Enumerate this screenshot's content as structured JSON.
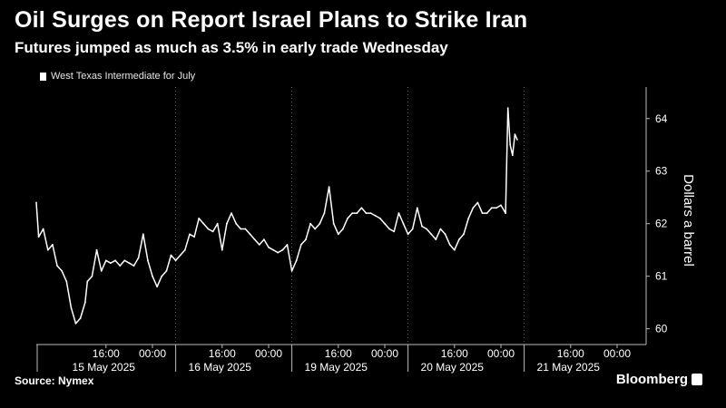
{
  "title": "Oil Surges on Report Israel Plans to Strike Iran",
  "subtitle": "Futures jumped as much as 3.5% in early trade Wednesday",
  "source": "Source: Nymex",
  "brand": "Bloomberg",
  "colors": {
    "background": "#000000",
    "line": "#ffffff",
    "grid": "#5a5a5a"
  },
  "chart_data": {
    "type": "line",
    "title": "Oil Surges on Report Israel Plans to Strike Iran",
    "subtitle": "Futures jumped as much as 3.5% in early trade Wednesday",
    "ylabel": "Dollars a barrel",
    "ylim": [
      59.7,
      64.6
    ],
    "yticks": [
      60,
      61,
      62,
      63,
      64
    ],
    "xlim": [
      -0.5,
      12
    ],
    "legend": {
      "placement": "top-left",
      "entries": [
        "West Texas Intermediate for July"
      ]
    },
    "grid": {
      "y": false,
      "x": true,
      "style": "dotted vertical lines at day boundaries"
    },
    "x_time_labels": [
      {
        "x": 1.0,
        "label": "16:00"
      },
      {
        "x": 2.0,
        "label": "00:00"
      },
      {
        "x": 3.5,
        "label": "16:00"
      },
      {
        "x": 4.5,
        "label": "00:00"
      },
      {
        "x": 6.0,
        "label": "16:00"
      },
      {
        "x": 7.0,
        "label": "00:00"
      },
      {
        "x": 8.5,
        "label": "16:00"
      },
      {
        "x": 9.5,
        "label": "00:00"
      },
      {
        "x": 11.0,
        "label": "16:00"
      },
      {
        "x": 12.0,
        "label": "00:00"
      }
    ],
    "x_date_labels": [
      {
        "x": 0.95,
        "label": "15 May 2025"
      },
      {
        "x": 3.45,
        "label": "16 May 2025"
      },
      {
        "x": 5.95,
        "label": "19 May 2025"
      },
      {
        "x": 8.45,
        "label": "20 May 2025"
      },
      {
        "x": 10.95,
        "label": "21 May 2025"
      }
    ],
    "x_day_boundaries": [
      2.5,
      5.0,
      7.5,
      10.0
    ],
    "series": [
      {
        "name": "West Texas Intermediate for July",
        "x": [
          -0.5,
          -0.45,
          -0.35,
          -0.25,
          -0.15,
          -0.05,
          0.05,
          0.15,
          0.25,
          0.35,
          0.45,
          0.55,
          0.6,
          0.7,
          0.8,
          0.9,
          1.0,
          1.1,
          1.2,
          1.3,
          1.4,
          1.5,
          1.6,
          1.7,
          1.8,
          1.9,
          2.0,
          2.1,
          2.2,
          2.3,
          2.4,
          2.5,
          2.6,
          2.7,
          2.8,
          2.9,
          3.0,
          3.1,
          3.2,
          3.3,
          3.4,
          3.5,
          3.6,
          3.7,
          3.8,
          3.9,
          4.0,
          4.1,
          4.2,
          4.3,
          4.4,
          4.5,
          4.6,
          4.7,
          4.8,
          4.9,
          5.0,
          5.1,
          5.2,
          5.3,
          5.4,
          5.5,
          5.6,
          5.7,
          5.8,
          5.9,
          6.0,
          6.1,
          6.2,
          6.3,
          6.4,
          6.5,
          6.6,
          6.7,
          6.8,
          6.9,
          7.0,
          7.1,
          7.2,
          7.3,
          7.4,
          7.5,
          7.6,
          7.7,
          7.8,
          7.9,
          8.0,
          8.1,
          8.2,
          8.3,
          8.4,
          8.5,
          8.6,
          8.7,
          8.8,
          8.9,
          9.0,
          9.1,
          9.2,
          9.3,
          9.4,
          9.5,
          9.6,
          9.65,
          9.7,
          9.75,
          9.8,
          9.85
        ],
        "values": [
          62.4,
          61.75,
          61.9,
          61.5,
          61.6,
          61.2,
          61.1,
          60.9,
          60.4,
          60.1,
          60.2,
          60.5,
          60.9,
          61.0,
          61.5,
          61.1,
          61.3,
          61.25,
          61.3,
          61.2,
          61.3,
          61.25,
          61.2,
          61.35,
          61.8,
          61.3,
          61.0,
          60.8,
          61.0,
          61.1,
          61.4,
          61.3,
          61.4,
          61.5,
          61.8,
          61.75,
          62.1,
          62.0,
          61.9,
          61.85,
          62.0,
          61.5,
          62.0,
          62.2,
          62.0,
          61.9,
          61.9,
          61.8,
          61.7,
          61.6,
          61.7,
          61.55,
          61.5,
          61.45,
          61.5,
          61.6,
          61.1,
          61.3,
          61.6,
          61.7,
          62.0,
          61.9,
          62.0,
          62.2,
          62.7,
          62.0,
          61.8,
          61.9,
          62.1,
          62.2,
          62.2,
          62.3,
          62.2,
          62.2,
          62.15,
          62.1,
          62.0,
          61.9,
          61.85,
          62.2,
          62.0,
          61.8,
          61.9,
          62.3,
          61.95,
          61.9,
          61.8,
          61.7,
          61.9,
          61.8,
          61.6,
          61.5,
          61.7,
          61.8,
          62.1,
          62.3,
          62.4,
          62.2,
          62.2,
          62.3,
          62.3,
          62.35,
          62.2,
          64.2,
          63.5,
          63.3,
          63.7,
          63.6
        ]
      }
    ]
  }
}
